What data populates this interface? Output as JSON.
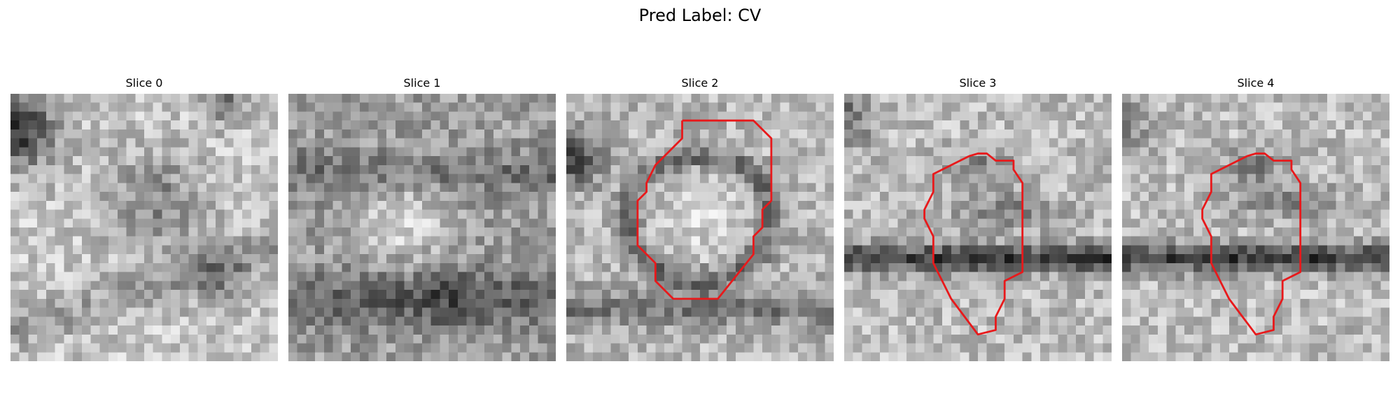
{
  "figure": {
    "title": "Pred Label: CV",
    "panels": [
      {
        "title": "Slice 0",
        "has_contour": false
      },
      {
        "title": "Slice 1",
        "has_contour": false
      },
      {
        "title": "Slice 2",
        "has_contour": true
      },
      {
        "title": "Slice 3",
        "has_contour": true
      },
      {
        "title": "Slice 4",
        "has_contour": true
      }
    ]
  },
  "colors": {
    "background": "#ffffff",
    "contour": "#e8191b",
    "colormap": "gray"
  }
}
